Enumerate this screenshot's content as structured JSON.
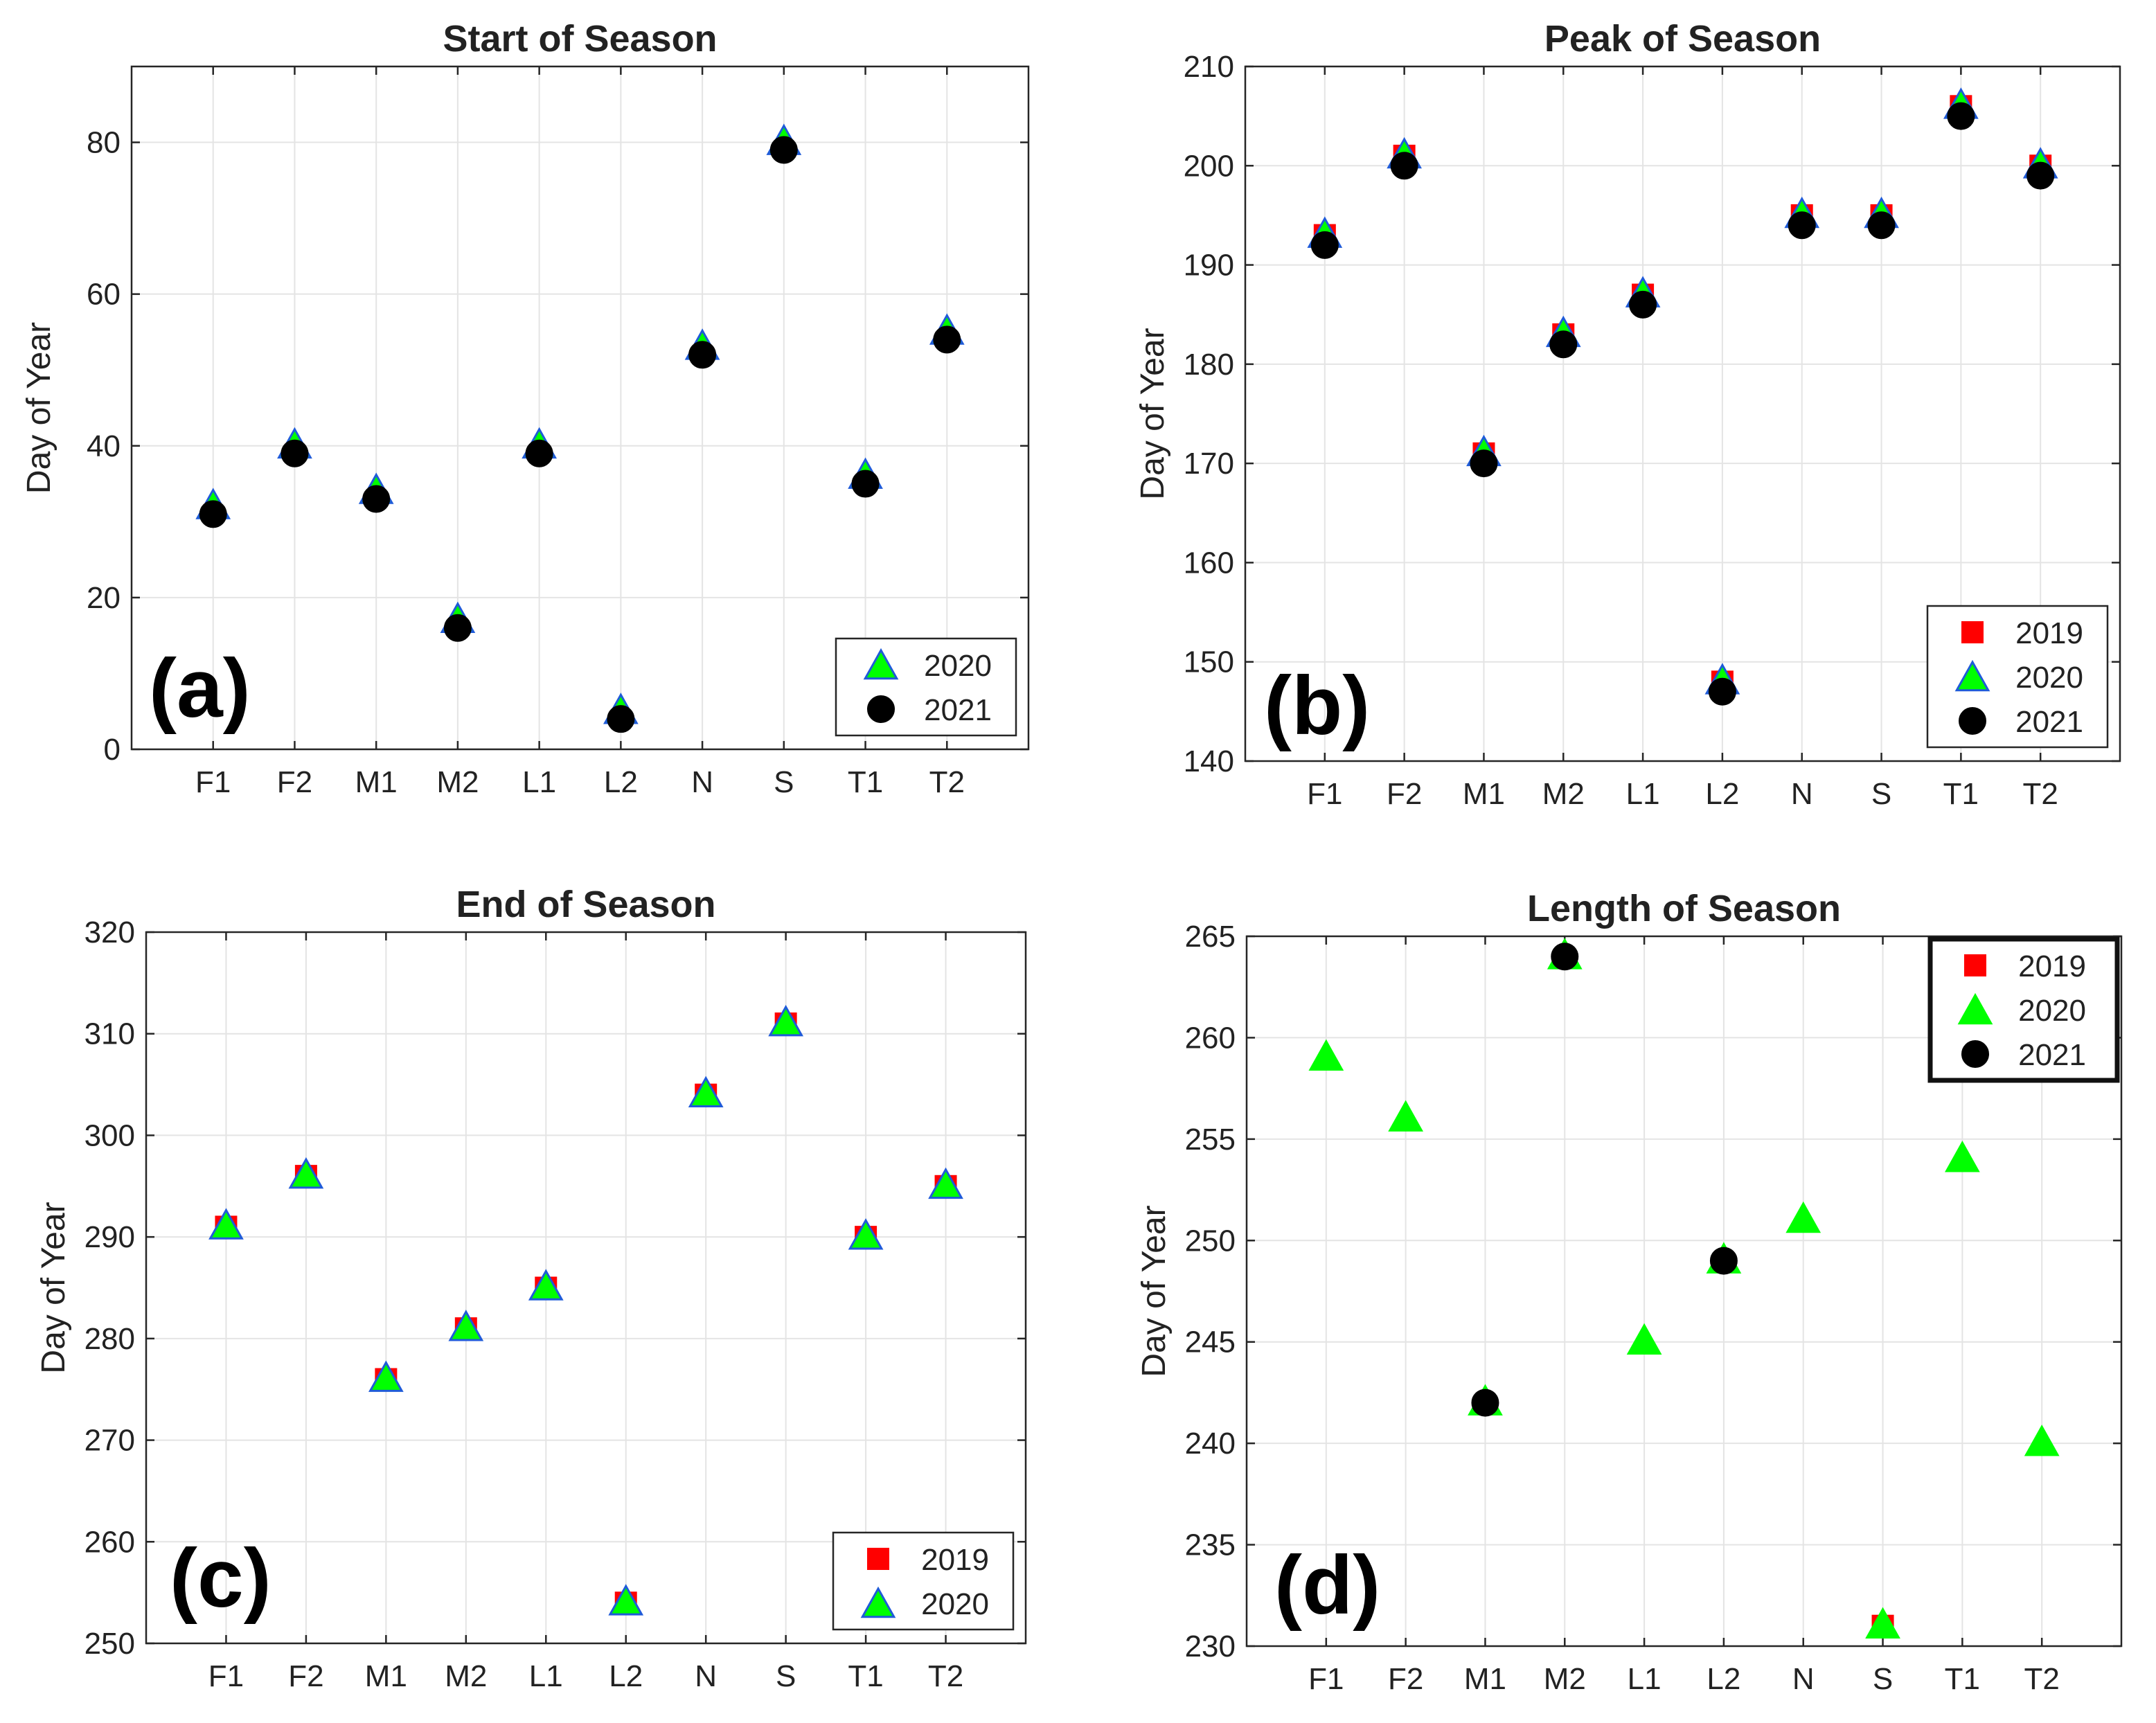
{
  "chart_data": [
    {
      "type": "scatter",
      "panel_label": "(a)",
      "title": "Start of Season",
      "xlabel": "",
      "ylabel": "Day of Year",
      "categories": [
        "F1",
        "F2",
        "M1",
        "M2",
        "L1",
        "L2",
        "N",
        "S",
        "T1",
        "T2"
      ],
      "ylim": [
        0,
        90
      ],
      "yticks": [
        0,
        20,
        40,
        60,
        80
      ],
      "grid": true,
      "legend_position": "bottom-right",
      "legend_bold_border": false,
      "series": [
        {
          "name": "2020",
          "marker": "triangle",
          "color": "#00ff00",
          "edge": "#1f5bd8",
          "values": [
            32,
            40,
            34,
            17,
            40,
            5,
            53,
            80,
            36,
            55
          ]
        },
        {
          "name": "2021",
          "marker": "circle",
          "color": "#000000",
          "edge": "#000000",
          "values": [
            31,
            39,
            33,
            16,
            39,
            4,
            52,
            79,
            35,
            54
          ]
        }
      ]
    },
    {
      "type": "scatter",
      "panel_label": "(b)",
      "title": "Peak of Season",
      "xlabel": "",
      "ylabel": "Day of Year",
      "categories": [
        "F1",
        "F2",
        "M1",
        "M2",
        "L1",
        "L2",
        "N",
        "S",
        "T1",
        "T2"
      ],
      "ylim": [
        140,
        210
      ],
      "yticks": [
        140,
        150,
        160,
        170,
        180,
        190,
        200,
        210
      ],
      "grid": true,
      "legend_position": "bottom-right",
      "legend_bold_border": false,
      "series": [
        {
          "name": "2019",
          "marker": "square",
          "color": "#ff0000",
          "edge": "#ff0000",
          "values": [
            193,
            201,
            171,
            183,
            187,
            148,
            195,
            195,
            206,
            200
          ]
        },
        {
          "name": "2020",
          "marker": "triangle",
          "color": "#00ff00",
          "edge": "#1f5bd8",
          "values": [
            193,
            201,
            171,
            183,
            187,
            148,
            195,
            195,
            206,
            200
          ]
        },
        {
          "name": "2021",
          "marker": "circle",
          "color": "#000000",
          "edge": "#000000",
          "values": [
            192,
            200,
            170,
            182,
            186,
            147,
            194,
            194,
            205,
            199
          ]
        }
      ]
    },
    {
      "type": "scatter",
      "panel_label": "(c)",
      "title": "End of Season",
      "xlabel": "",
      "ylabel": "Day of Year",
      "categories": [
        "F1",
        "F2",
        "M1",
        "M2",
        "L1",
        "L2",
        "N",
        "S",
        "T1",
        "T2"
      ],
      "ylim": [
        250,
        320
      ],
      "yticks": [
        250,
        260,
        270,
        280,
        290,
        300,
        310,
        320
      ],
      "grid": true,
      "legend_position": "bottom-right",
      "legend_bold_border": false,
      "series": [
        {
          "name": "2019",
          "marker": "square",
          "color": "#ff0000",
          "edge": "#ff0000",
          "values": [
            291,
            296,
            276,
            281,
            285,
            254,
            304,
            311,
            290,
            295
          ]
        },
        {
          "name": "2020",
          "marker": "triangle",
          "color": "#00ff00",
          "edge": "#1f5bd8",
          "values": [
            291,
            296,
            276,
            281,
            285,
            254,
            304,
            311,
            290,
            295
          ]
        }
      ]
    },
    {
      "type": "scatter",
      "panel_label": "(d)",
      "title": "Length of Season",
      "xlabel": "",
      "ylabel": "Day of Year",
      "categories": [
        "F1",
        "F2",
        "M1",
        "M2",
        "L1",
        "L2",
        "N",
        "S",
        "T1",
        "T2"
      ],
      "ylim": [
        230,
        265
      ],
      "yticks": [
        230,
        235,
        240,
        245,
        250,
        255,
        260,
        265
      ],
      "grid": true,
      "legend_position": "top-right",
      "legend_bold_border": true,
      "series": [
        {
          "name": "2019",
          "marker": "square",
          "color": "#ff0000",
          "edge": "#ff0000",
          "values": [
            null,
            null,
            null,
            null,
            null,
            null,
            null,
            231,
            null,
            null
          ]
        },
        {
          "name": "2020",
          "marker": "triangle",
          "color": "#00ff00",
          "edge": "#00ff00",
          "values": [
            259,
            256,
            242,
            264,
            245,
            249,
            251,
            231,
            254,
            240
          ]
        },
        {
          "name": "2021",
          "marker": "circle",
          "color": "#000000",
          "edge": "#000000",
          "values": [
            null,
            null,
            242,
            264,
            null,
            249,
            null,
            null,
            null,
            null
          ]
        }
      ]
    }
  ]
}
